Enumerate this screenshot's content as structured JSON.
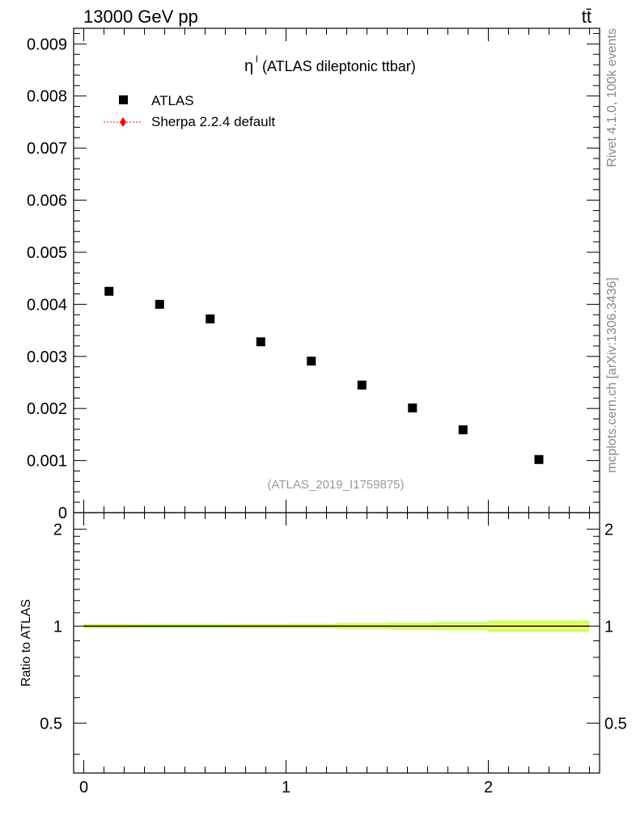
{
  "header": {
    "left": "13000 GeV pp",
    "right": "tt̄"
  },
  "side_labels": {
    "rivet": "Rivet 4.1.0,  100k events",
    "mcplots": "mcplots.cern.ch [arXiv:1306.3436]"
  },
  "chart_data": [
    {
      "type": "scatter",
      "title_symbol": "η",
      "title_superscript": "l",
      "title": "(ATLAS dileptonic ttbar)",
      "watermark": "(ATLAS_2019_I1759875)",
      "xlim": [
        -0.05,
        2.55
      ],
      "ylim": [
        0,
        0.0093
      ],
      "legend_position": "top-left",
      "yticks": [
        "0",
        "0.001",
        "0.002",
        "0.003",
        "0.004",
        "0.005",
        "0.006",
        "0.007",
        "0.008",
        "0.009"
      ],
      "series": [
        {
          "name": "ATLAS",
          "marker": "square",
          "color": "#000000",
          "x": [
            0.125,
            0.375,
            0.625,
            0.875,
            1.125,
            1.375,
            1.625,
            1.875,
            2.25
          ],
          "y": [
            0.00425,
            0.004,
            0.00372,
            0.00328,
            0.00291,
            0.00245,
            0.00201,
            0.00159,
            0.00102
          ]
        },
        {
          "name": "Sherpa 2.2.4 default",
          "marker": "diamond",
          "line": "dotted",
          "color": "#ff0000",
          "x": [],
          "y": []
        }
      ]
    },
    {
      "type": "line",
      "ylabel": "Ratio to ATLAS",
      "xlim": [
        -0.05,
        2.55
      ],
      "ylim": [
        0.35,
        2.25
      ],
      "yticks": [
        "0.5",
        "1",
        "2"
      ],
      "xticks": [
        "0",
        "1",
        "2"
      ],
      "reference_line": 1,
      "band_color": "#ccff66",
      "band_inner_color": "#ffff66",
      "bins": [
        [
          0,
          0.25
        ],
        [
          0.25,
          0.5
        ],
        [
          0.5,
          0.75
        ],
        [
          0.75,
          1.0
        ],
        [
          1.0,
          1.25
        ],
        [
          1.25,
          1.5
        ],
        [
          1.5,
          1.75
        ],
        [
          1.75,
          2.0
        ],
        [
          2.0,
          2.5
        ]
      ],
      "band_halfwidth": [
        0.015,
        0.014,
        0.014,
        0.015,
        0.016,
        0.022,
        0.025,
        0.03,
        0.04
      ]
    }
  ]
}
